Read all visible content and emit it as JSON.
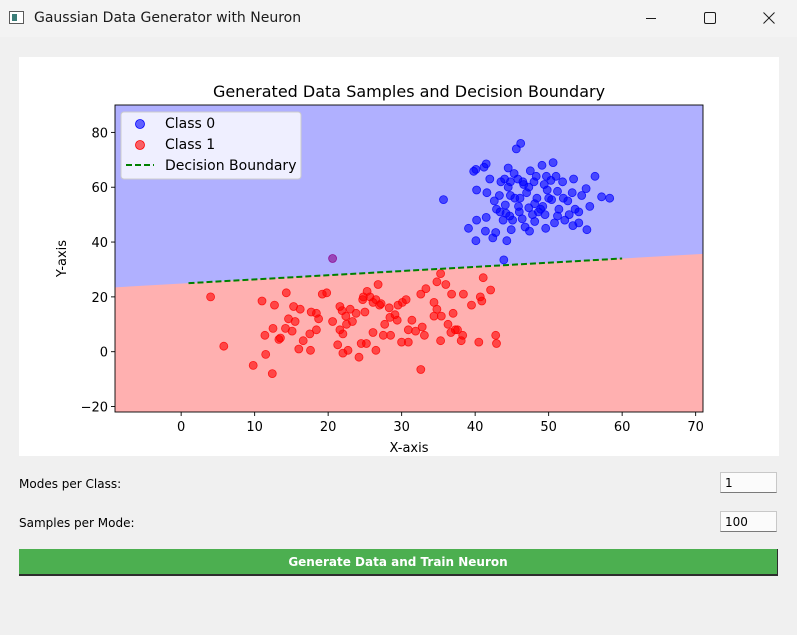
{
  "window": {
    "title": "Gaussian Data Generator with Neuron"
  },
  "controls": {
    "modes_label": "Modes per Class:",
    "modes_value": "1",
    "samples_label": "Samples per Mode:",
    "samples_value": "100",
    "generate_button": "Generate Data and Train Neuron"
  },
  "colors": {
    "class0": "#0000ff",
    "class1": "#ff0000",
    "region0": "#b0b0ff",
    "region1": "#ffb0b0",
    "boundary": "#008000",
    "button": "#4caf50"
  },
  "chart_data": {
    "type": "scatter",
    "title": "Generated Data Samples and Decision Boundary",
    "xlabel": "X-axis",
    "ylabel": "Y-axis",
    "xlim": [
      -9,
      71
    ],
    "ylim": [
      -22,
      90
    ],
    "xticks": [
      0,
      10,
      20,
      30,
      40,
      50,
      60,
      70
    ],
    "yticks": [
      -20,
      0,
      20,
      40,
      60,
      80
    ],
    "legend_position": "upper-left",
    "legend": [
      "Class 0",
      "Class 1",
      "Decision Boundary"
    ],
    "series": [
      {
        "name": "Class 0",
        "color": "#0000ff",
        "points": [
          [
            46.2,
            76
          ],
          [
            45.6,
            74
          ],
          [
            41.5,
            68.5
          ],
          [
            41.2,
            67.3
          ],
          [
            44.5,
            67
          ],
          [
            40.1,
            66.5
          ],
          [
            39.8,
            65.8
          ],
          [
            47.5,
            66
          ],
          [
            49.1,
            68
          ],
          [
            50.6,
            69
          ],
          [
            48.3,
            64
          ],
          [
            45.3,
            65
          ],
          [
            44,
            63
          ],
          [
            42,
            63
          ],
          [
            43.5,
            62
          ],
          [
            46.5,
            62
          ],
          [
            48,
            62
          ],
          [
            49.4,
            61
          ],
          [
            50.3,
            62.5
          ],
          [
            51.9,
            62
          ],
          [
            53.4,
            63
          ],
          [
            56.3,
            64
          ],
          [
            44.5,
            60
          ],
          [
            47.3,
            60
          ],
          [
            49.8,
            59
          ],
          [
            51.2,
            58.5
          ],
          [
            53.2,
            58
          ],
          [
            55.1,
            59.5
          ],
          [
            57.2,
            56.5
          ],
          [
            58.3,
            56
          ],
          [
            40.2,
            59
          ],
          [
            41.6,
            58
          ],
          [
            43.3,
            57
          ],
          [
            44.8,
            57
          ],
          [
            46.1,
            56
          ],
          [
            48.4,
            56
          ],
          [
            50.4,
            55.5
          ],
          [
            52.6,
            55
          ],
          [
            42.6,
            55
          ],
          [
            44.1,
            53.5
          ],
          [
            45.9,
            53
          ],
          [
            47.3,
            52.5
          ],
          [
            49.2,
            53
          ],
          [
            51.4,
            52
          ],
          [
            53.6,
            52
          ],
          [
            55.6,
            53
          ],
          [
            46,
            51
          ],
          [
            47.8,
            50
          ],
          [
            49.5,
            50
          ],
          [
            51.2,
            49.5
          ],
          [
            52.8,
            50
          ],
          [
            54.1,
            51
          ],
          [
            43.4,
            51
          ],
          [
            44.7,
            49.5
          ],
          [
            41.5,
            49
          ],
          [
            40.2,
            48
          ],
          [
            43.8,
            48
          ],
          [
            45.1,
            48
          ],
          [
            46.4,
            48.5
          ],
          [
            48.1,
            47.5
          ],
          [
            50.8,
            47
          ],
          [
            52.2,
            48
          ],
          [
            54.1,
            47
          ],
          [
            55.2,
            44.5
          ],
          [
            53.3,
            46
          ],
          [
            39.1,
            45
          ],
          [
            41.4,
            44
          ],
          [
            42.8,
            43.5
          ],
          [
            44.9,
            44.5
          ],
          [
            46.8,
            45.5
          ],
          [
            47.4,
            44
          ],
          [
            49.6,
            45
          ],
          [
            40.1,
            40.5
          ],
          [
            42.4,
            41.5
          ],
          [
            44.3,
            40.5
          ],
          [
            43.9,
            33.5
          ],
          [
            35.7,
            55.5
          ],
          [
            48.6,
            51
          ],
          [
            50,
            56
          ],
          [
            42.9,
            52
          ],
          [
            45.4,
            56
          ],
          [
            47,
            58
          ],
          [
            48.9,
            52
          ],
          [
            52,
            56
          ],
          [
            46.6,
            61
          ],
          [
            44.8,
            62
          ],
          [
            48.1,
            54
          ],
          [
            44.2,
            50.5
          ],
          [
            49.7,
            64
          ],
          [
            51,
            64
          ],
          [
            45.8,
            63
          ],
          [
            54.5,
            57
          ]
        ]
      },
      {
        "name": "Class 1",
        "color": "#ff0000",
        "points": [
          [
            4,
            20
          ],
          [
            5.8,
            2
          ],
          [
            9.8,
            -5
          ],
          [
            11.5,
            -1
          ],
          [
            12.4,
            -8
          ],
          [
            11,
            18.5
          ],
          [
            12.7,
            17
          ],
          [
            14.3,
            21.5
          ],
          [
            15.3,
            16.5
          ],
          [
            16.2,
            15.5
          ],
          [
            17.7,
            14.5
          ],
          [
            18.4,
            14
          ],
          [
            19.8,
            21.5
          ],
          [
            21.6,
            16.5
          ],
          [
            21.9,
            15
          ],
          [
            22.4,
            13
          ],
          [
            23,
            15.5
          ],
          [
            24.7,
            19
          ],
          [
            25.3,
            22
          ],
          [
            25.7,
            20
          ],
          [
            26.5,
            19
          ],
          [
            27.2,
            17.5
          ],
          [
            28.3,
            16
          ],
          [
            29.5,
            17
          ],
          [
            30.1,
            18
          ],
          [
            30.6,
            19
          ],
          [
            32.6,
            21
          ],
          [
            33.3,
            23
          ],
          [
            34.8,
            25.5
          ],
          [
            35.3,
            28.5
          ],
          [
            36,
            24.5
          ],
          [
            36.8,
            21
          ],
          [
            38.4,
            21
          ],
          [
            39.5,
            17
          ],
          [
            40.7,
            20
          ],
          [
            40.9,
            18.5
          ],
          [
            41.1,
            27
          ],
          [
            42.1,
            22.5
          ],
          [
            42.8,
            6
          ],
          [
            42.9,
            3
          ],
          [
            40.5,
            3.5
          ],
          [
            38.1,
            4
          ],
          [
            37.3,
            8
          ],
          [
            36.7,
            7
          ],
          [
            35.3,
            4
          ],
          [
            34.8,
            15.5
          ],
          [
            34.4,
            13
          ],
          [
            33.1,
            6
          ],
          [
            32.6,
            -6.5
          ],
          [
            31.4,
            11.5
          ],
          [
            30.9,
            8
          ],
          [
            30,
            3.5
          ],
          [
            29.1,
            13.5
          ],
          [
            28.4,
            12.5
          ],
          [
            27.5,
            6
          ],
          [
            26.8,
            24.5
          ],
          [
            26.1,
            7
          ],
          [
            25.2,
            3
          ],
          [
            24.5,
            3
          ],
          [
            24.2,
            -2
          ],
          [
            22.7,
            0.5
          ],
          [
            22,
            -0.5
          ],
          [
            21.6,
            8
          ],
          [
            21.3,
            2.5
          ],
          [
            20.6,
            11
          ],
          [
            22.5,
            10
          ],
          [
            22,
            6.5
          ],
          [
            23.8,
            14
          ],
          [
            25,
            14.5
          ],
          [
            26.5,
            0.5
          ],
          [
            27,
            17
          ],
          [
            28.5,
            6
          ],
          [
            29.4,
            11.5
          ],
          [
            30.9,
            3.5
          ],
          [
            31.9,
            7.5
          ],
          [
            32.8,
            9
          ],
          [
            34.4,
            18
          ],
          [
            35.4,
            13
          ],
          [
            36.3,
            10
          ],
          [
            37,
            14
          ],
          [
            37.6,
            8
          ],
          [
            38.3,
            6
          ],
          [
            17.5,
            6.5
          ],
          [
            16.6,
            4
          ],
          [
            16,
            1
          ],
          [
            17.6,
            0.5
          ],
          [
            18.4,
            8
          ],
          [
            18.7,
            12
          ],
          [
            15.5,
            11
          ],
          [
            15.1,
            7.5
          ],
          [
            14.6,
            12
          ],
          [
            14.2,
            8.5
          ],
          [
            13.3,
            4.5
          ],
          [
            12.5,
            8.5
          ],
          [
            11.4,
            6
          ],
          [
            13.5,
            5
          ],
          [
            24.8,
            20
          ],
          [
            26.1,
            18
          ],
          [
            23.3,
            11
          ],
          [
            27.7,
            10
          ],
          [
            19.2,
            21
          ]
        ]
      },
      {
        "name": "",
        "color": "#8b008b",
        "points": [
          [
            20.6,
            34
          ]
        ]
      }
    ],
    "decision_boundary": {
      "x": [
        1,
        60
      ],
      "y": [
        25,
        34
      ]
    }
  }
}
